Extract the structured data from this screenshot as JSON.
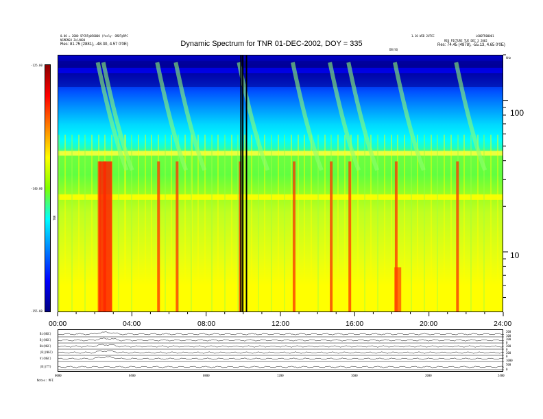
{
  "header": {
    "left_line1": "0.00 = 2000 SPCRF@050000 (Yooly- ORDT@RPC",
    "left_line2": "NSMENSU ZelA000",
    "left_line3": "Res:   81.75 (2881), -48.30, 4.57 0'0E)",
    "right_line1": "1.10 WED 2UTCC",
    "right_line2": "LO00TR00001",
    "right_line3": "REQ_PICTURE  TUE DEC 3 2002",
    "right_line4": "Res:   74.45 (4878), -55.13, 4.65 0'0E)",
    "unit_label": "DB/SQ",
    "freq_unit": "kHz",
    "title": "Dynamic Spectrum for TNR 01-DEC-2002, DOY = 335"
  },
  "colorbar": {
    "label": "TNR",
    "tick_labels": [
      "-125.00",
      "-140.00",
      "-155.00"
    ],
    "stops": [
      "#8b0000",
      "#ff0000",
      "#ff8000",
      "#ffff00",
      "#80ff00",
      "#00ffff",
      "#0080ff",
      "#0000ff",
      "#000080"
    ]
  },
  "spectrogram": {
    "freq_tick_labels": [
      "100",
      "10"
    ],
    "time_tick_labels": [
      "00:00",
      "04:00",
      "08:00",
      "12:00",
      "16:00",
      "20:00",
      "24:00"
    ],
    "data_gaps": [
      "~10:00"
    ]
  },
  "lower_panels": {
    "row_labels": [
      "Bi(NGC)",
      "Bj(NGC)",
      "Bk(NGC)",
      "|B|(NGC)",
      "Vi(NGC)",
      "|B|(TT)"
    ],
    "right_labels": [
      "200",
      "100",
      "200",
      "0",
      "200",
      "0",
      "200",
      "0",
      "1000",
      "500",
      "0"
    ],
    "time_tick_labels": [
      "0000",
      "0400",
      "0800",
      "1200",
      "1600",
      "2000",
      "2400"
    ],
    "footer": "Notes:   MFI"
  },
  "chart_data": {
    "type": "heatmap",
    "title": "Dynamic Spectrum for TNR 01-DEC-2002, DOY = 335",
    "xlabel": "",
    "ylabel": "kHz",
    "x": [
      "00:00",
      "04:00",
      "08:00",
      "12:00",
      "16:00",
      "20:00",
      "24:00"
    ],
    "xlim": [
      0,
      24
    ],
    "ylim": [
      4,
      200
    ],
    "y_scale": "log",
    "y_ticks": [
      10,
      100
    ],
    "color_range": [
      -155,
      -125
    ],
    "features": {
      "plasma_line_band_khz": [
        23,
        45
      ],
      "low_frequency_floor": "yellow",
      "high_frequency_background": "blue",
      "type_iii_bursts_hours": [
        2.2,
        2.5,
        5.4,
        6.4,
        9.8,
        12.7,
        14.7,
        15.7,
        18.2,
        21.5
      ]
    }
  }
}
